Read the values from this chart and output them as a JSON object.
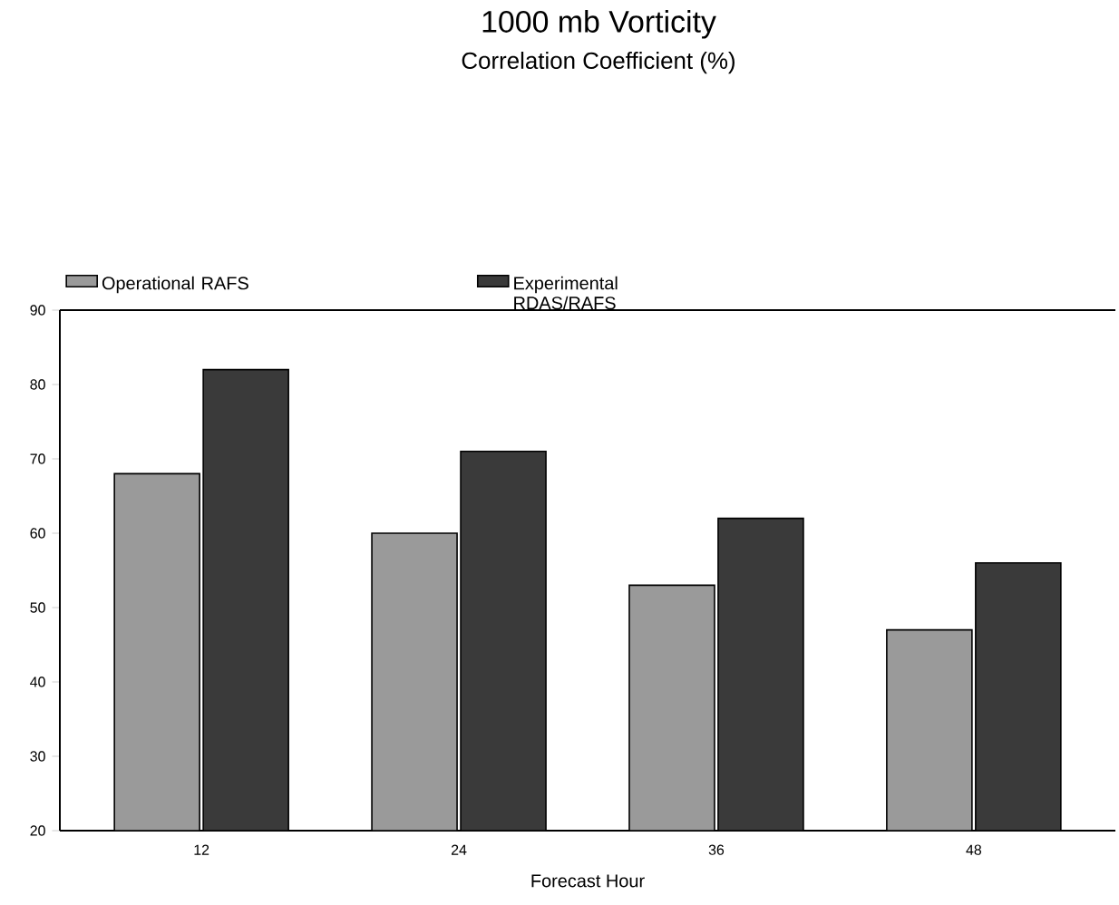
{
  "chart_data": {
    "type": "bar",
    "title": "1000 mb Vorticity",
    "subtitle": "Correlation Coefficient (%)",
    "xlabel": "Forecast Hour",
    "categories": [
      "12",
      "24",
      "36",
      "48"
    ],
    "series": [
      {
        "name": "Operational RAFS",
        "color": "#9a9a9a",
        "values": [
          68,
          60,
          53,
          47
        ]
      },
      {
        "name": "Experimental RDAS/RAFS",
        "color": "#3a3a3a",
        "values": [
          82,
          71,
          62,
          56
        ]
      }
    ],
    "ylim": [
      20,
      90
    ],
    "yticks": [
      20,
      30,
      40,
      50,
      60,
      70,
      80,
      90
    ],
    "grid": false,
    "legend": "top"
  }
}
